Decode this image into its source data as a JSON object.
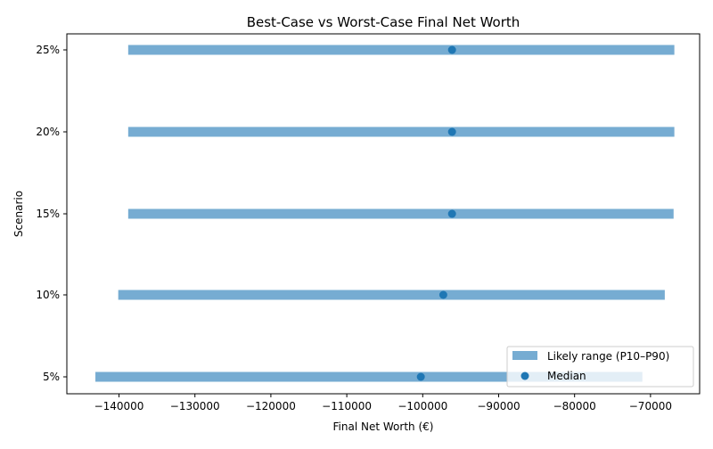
{
  "chart_data": {
    "type": "range-bar",
    "title": "Best-Case vs Worst-Case Final Net Worth",
    "xlabel": "Final Net Worth (€)",
    "ylabel": "Scenario",
    "xlim": [
      -146870,
      -63530
    ],
    "xticks": [
      -140000,
      -130000,
      -120000,
      -110000,
      -100000,
      -90000,
      -80000,
      -70000
    ],
    "categories": [
      "5%",
      "10%",
      "15%",
      "20%",
      "25%"
    ],
    "series": [
      {
        "name": "Likely range (P10–P90)",
        "type": "range",
        "color": "#76acd2",
        "low": [
          -143110,
          -140100,
          -138790,
          -138790,
          -138790
        ],
        "high": [
          -71070,
          -68120,
          -66960,
          -66860,
          -66860
        ]
      },
      {
        "name": "Median",
        "type": "scatter",
        "color": "#1f77b4",
        "values": [
          -100250,
          -97290,
          -96140,
          -96140,
          -96140
        ]
      }
    ],
    "grid": false,
    "legend": "bottom-right"
  }
}
